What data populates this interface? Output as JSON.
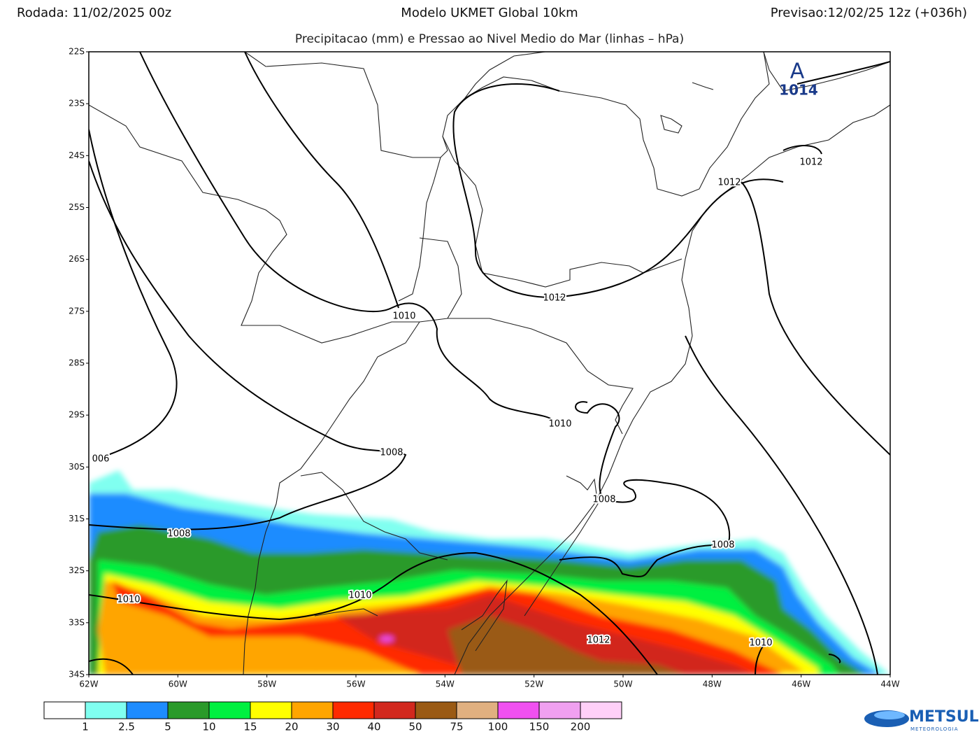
{
  "header": {
    "run": "Rodada: 11/02/2025 00z",
    "model": "Modelo UKMET Global 10km",
    "forecast": "Previsao:12/02/25 12z (+036h)"
  },
  "subtitle": "Precipitacao (mm) e Pressao ao Nivel Medio do Mar (linhas – hPa)",
  "map": {
    "lat_labels": [
      "22S",
      "23S",
      "24S",
      "25S",
      "26S",
      "27S",
      "28S",
      "29S",
      "30S",
      "31S",
      "32S",
      "33S",
      "34S"
    ],
    "lon_labels": [
      "62W",
      "60W",
      "58W",
      "56W",
      "54W",
      "52W",
      "50W",
      "48W",
      "46W",
      "44W"
    ],
    "high_center": {
      "symbol": "A",
      "label": "1014"
    },
    "isobar_labels": [
      "1012",
      "1012",
      "1012",
      "1010",
      "1010",
      "1008",
      "006",
      "1008",
      "1008",
      "1008",
      "1010",
      "1010",
      "1012",
      "1010"
    ]
  },
  "colorbar": {
    "labels": [
      "1",
      "2.5",
      "5",
      "10",
      "15",
      "20",
      "30",
      "40",
      "50",
      "75",
      "100",
      "150",
      "200"
    ],
    "colors": [
      "#ffffff",
      "#80fff0",
      "#1e8cff",
      "#2a9a2a",
      "#00f040",
      "#ffff00",
      "#ffa500",
      "#ff2a00",
      "#d2281e",
      "#9a5a14",
      "#e0b080",
      "#f050f0",
      "#f0a0f0",
      "#ffd0f8"
    ]
  },
  "logo": {
    "name": "METSUL",
    "tagline": "METEOROLOGIA"
  }
}
